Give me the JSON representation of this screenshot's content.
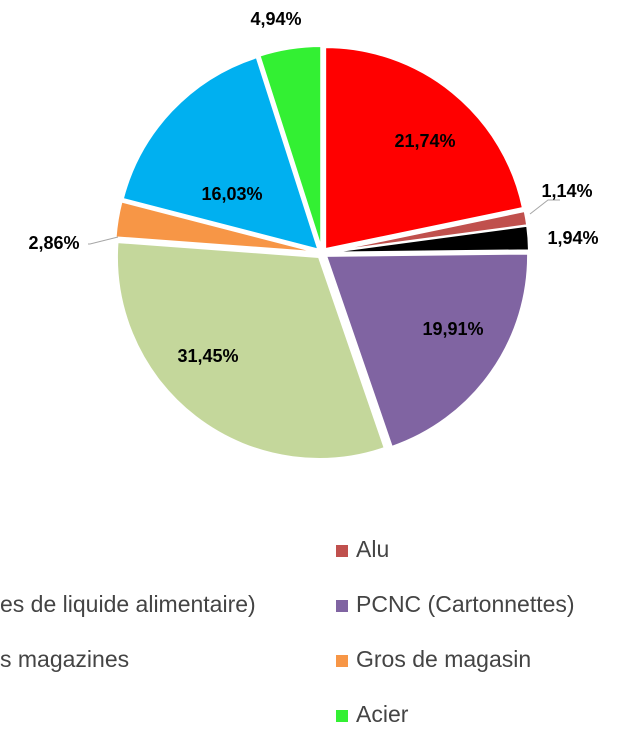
{
  "chart_data": {
    "type": "pie",
    "labels": [
      null,
      "Alu",
      "es de liquide alimentaire)",
      "PCNC (Cartonnettes)",
      "s magazines",
      "Gros de magasin",
      null,
      "Acier"
    ],
    "values": [
      21.74,
      1.14,
      1.94,
      19.91,
      31.45,
      2.86,
      16.03,
      4.94
    ],
    "value_labels": [
      "21,74%",
      "1,14%",
      "1,94%",
      "19,91%",
      "31,45%",
      "2,86%",
      "16,03%",
      "4,94%"
    ],
    "colors": [
      "#ff0000",
      "#c0504d",
      "#000000",
      "#8064a2",
      "#c4d79b",
      "#f79646",
      "#00b0f0",
      "#33f033"
    ],
    "legend": "bottom"
  }
}
